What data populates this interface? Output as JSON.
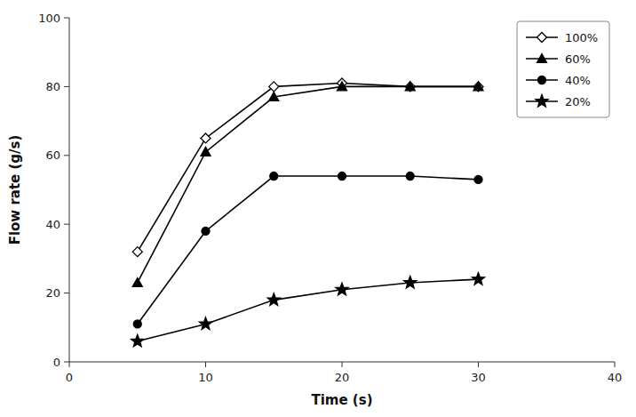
{
  "chart_data": {
    "type": "line",
    "x_label": "Time (s)",
    "y_label": "Flow rate (g/s)",
    "x": [
      5,
      10,
      15,
      20,
      25,
      30
    ],
    "series": [
      {
        "name": "100%",
        "color": "black",
        "marker": "diamond-open",
        "values": [
          32,
          65,
          80,
          81,
          80,
          80
        ]
      },
      {
        "name": "60%",
        "color": "black",
        "marker": "triangle",
        "values": [
          23,
          61,
          77,
          80,
          80,
          80
        ]
      },
      {
        "name": "40%",
        "color": "black",
        "marker": "circle",
        "values": [
          11,
          38,
          54,
          54,
          54,
          53
        ]
      },
      {
        "name": "20%",
        "color": "black",
        "marker": "star",
        "values": [
          6,
          11,
          18,
          21,
          23,
          24
        ]
      }
    ],
    "xlim": [
      0,
      40
    ],
    "ylim": [
      0,
      100
    ],
    "xticks": [
      0,
      10,
      20,
      30,
      40
    ],
    "yticks": [
      0,
      20,
      40,
      60,
      80,
      100
    ],
    "grid": false,
    "legend": "upper right"
  }
}
